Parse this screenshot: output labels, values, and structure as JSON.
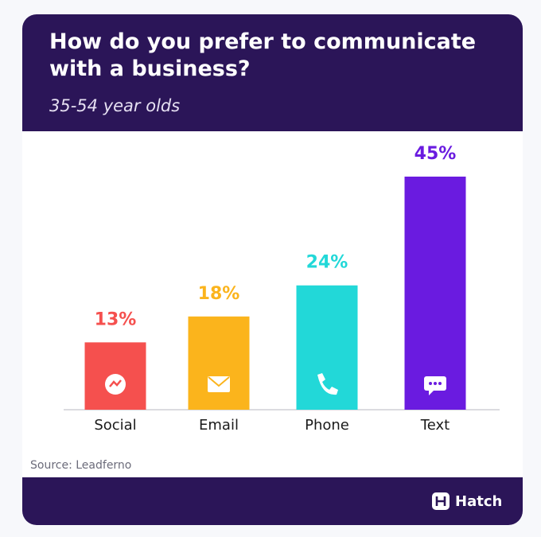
{
  "chart_data": {
    "type": "bar",
    "title": "How do you prefer to communicate with a business?",
    "subtitle": "35-54 year olds",
    "categories": [
      "Social",
      "Email",
      "Phone",
      "Text"
    ],
    "values": [
      13,
      18,
      24,
      45
    ],
    "value_labels": [
      "13%",
      "18%",
      "24%",
      "45%"
    ],
    "colors": [
      "#f5504e",
      "#fbb41c",
      "#22d8d8",
      "#6a1be0"
    ],
    "source": "Source: Leadferno",
    "brand": "Hatch"
  }
}
